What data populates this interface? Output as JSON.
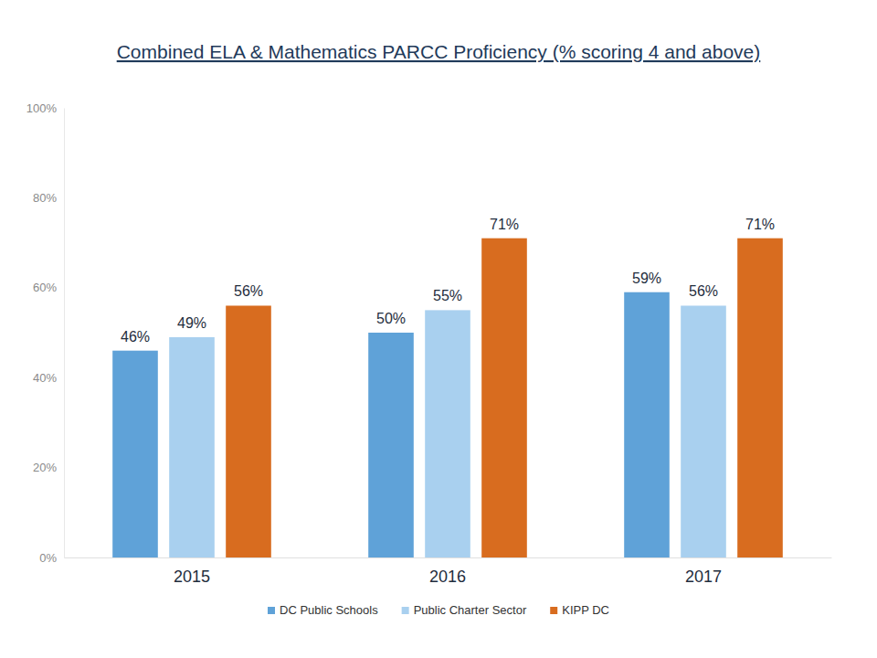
{
  "chart_data": {
    "type": "bar",
    "title": "Combined ELA & Mathematics PARCC Proficiency (% scoring 4 and above)",
    "categories": [
      "2015",
      "2016",
      "2017"
    ],
    "series": [
      {
        "name": "DC Public Schools",
        "color": "#5fa2d8",
        "values": [
          46,
          50,
          59
        ],
        "value_labels": [
          "46%",
          "50%",
          "59%"
        ]
      },
      {
        "name": "Public Charter Sector",
        "color": "#a9d0ef",
        "values": [
          49,
          55,
          56
        ],
        "value_labels": [
          "49%",
          "55%",
          "56%"
        ]
      },
      {
        "name": "KIPP DC",
        "color": "#d86c1f",
        "values": [
          56,
          71,
          71
        ],
        "value_labels": [
          "56%",
          "71%",
          "71%"
        ]
      }
    ],
    "ylim": [
      0,
      100
    ],
    "yticks": [
      {
        "value": 0,
        "label": "0%"
      },
      {
        "value": 20,
        "label": "20%"
      },
      {
        "value": 40,
        "label": "40%"
      },
      {
        "value": 60,
        "label": "60%"
      },
      {
        "value": 80,
        "label": "80%"
      },
      {
        "value": 100,
        "label": "100%"
      }
    ],
    "grid": false,
    "legend": "bottom",
    "data_labels": true
  }
}
